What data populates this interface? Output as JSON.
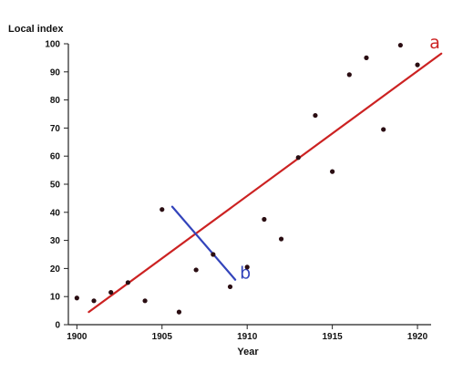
{
  "chart_data": {
    "type": "scatter",
    "title": "",
    "xlabel": "Year",
    "ylabel": "Local index",
    "xlim": [
      1899.5,
      1920.8
    ],
    "ylim": [
      0,
      100
    ],
    "x_ticks": [
      1900,
      1905,
      1910,
      1915,
      1920
    ],
    "x_tick_labels": [
      "1900",
      "1905",
      "1910",
      "1915",
      "1920"
    ],
    "y_ticks": [
      0,
      10,
      20,
      30,
      40,
      50,
      60,
      70,
      80,
      90,
      100
    ],
    "y_tick_labels": [
      "0",
      "10",
      "20",
      "30",
      "40",
      "50",
      "60",
      "70",
      "80",
      "90",
      "100"
    ],
    "grid": false,
    "series": [
      {
        "color": "#2a0d12",
        "points": [
          {
            "x": 1900,
            "y": 9.5
          },
          {
            "x": 1901,
            "y": 8.5
          },
          {
            "x": 1902,
            "y": 11.5
          },
          {
            "x": 1903,
            "y": 15
          },
          {
            "x": 1904,
            "y": 8.5
          },
          {
            "x": 1905,
            "y": 41
          },
          {
            "x": 1906,
            "y": 4.5
          },
          {
            "x": 1907,
            "y": 19.5
          },
          {
            "x": 1908,
            "y": 25
          },
          {
            "x": 1909,
            "y": 13.5
          },
          {
            "x": 1910,
            "y": 20.5
          },
          {
            "x": 1911,
            "y": 37.5
          },
          {
            "x": 1912,
            "y": 30.5
          },
          {
            "x": 1913,
            "y": 59.5
          },
          {
            "x": 1914,
            "y": 74.5
          },
          {
            "x": 1915,
            "y": 54.5
          },
          {
            "x": 1916,
            "y": 89
          },
          {
            "x": 1917,
            "y": 95
          },
          {
            "x": 1918,
            "y": 69.5
          },
          {
            "x": 1919,
            "y": 99.5
          },
          {
            "x": 1920,
            "y": 92.5
          }
        ]
      }
    ],
    "annotations": [
      {
        "label": "a",
        "kind": "line",
        "color": "#cc2222",
        "from": {
          "x": 1900.7,
          "y": 4.5
        },
        "to": {
          "x": 1921.4,
          "y": 96.5
        }
      },
      {
        "label": "b",
        "kind": "segment",
        "color": "#3344bb",
        "from": {
          "x": 1905.6,
          "y": 42
        },
        "to": {
          "x": 1909.3,
          "y": 16
        }
      }
    ]
  }
}
